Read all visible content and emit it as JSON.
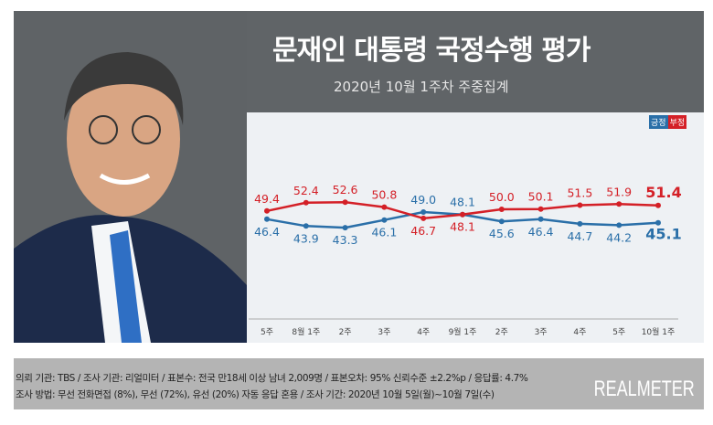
{
  "header": {
    "title": "문재인 대통령 국정수행 평가",
    "subtitle": "2020년 10월 1주차 주중집계"
  },
  "legend": {
    "positive": "긍정",
    "negative": "부정"
  },
  "chart_data": {
    "type": "line",
    "categories": [
      "5주",
      "8월 1주",
      "2주",
      "3주",
      "4주",
      "9월 1주",
      "2주",
      "3주",
      "4주",
      "5주",
      "10월 1주"
    ],
    "series": [
      {
        "name": "긍정",
        "color": "#2a6fa8",
        "values": [
          46.4,
          43.9,
          43.3,
          46.1,
          49.0,
          48.1,
          45.6,
          46.4,
          44.7,
          44.2,
          45.1
        ]
      },
      {
        "name": "부정",
        "color": "#d42027",
        "values": [
          49.4,
          52.4,
          52.6,
          50.8,
          46.7,
          48.1,
          50.0,
          50.1,
          51.5,
          51.9,
          51.4
        ]
      }
    ],
    "grid": false
  },
  "footer": {
    "line1": "의뢰 기관: TBS / 조사 기관: 리얼미터 / 표본수: 전국 만18세 이상 남녀 2,009명 / 표본오차: 95% 신뢰수준 ±2.2%p / 응답률: 4.7%",
    "line2": "조사 방법: 무선 전화면접 (8%), 무선 (72%), 유선 (20%) 자동 응답 혼용 / 조사 기간: 2020년 10월 5일(월)~10월 7일(수)",
    "logo": "REALMETER"
  }
}
